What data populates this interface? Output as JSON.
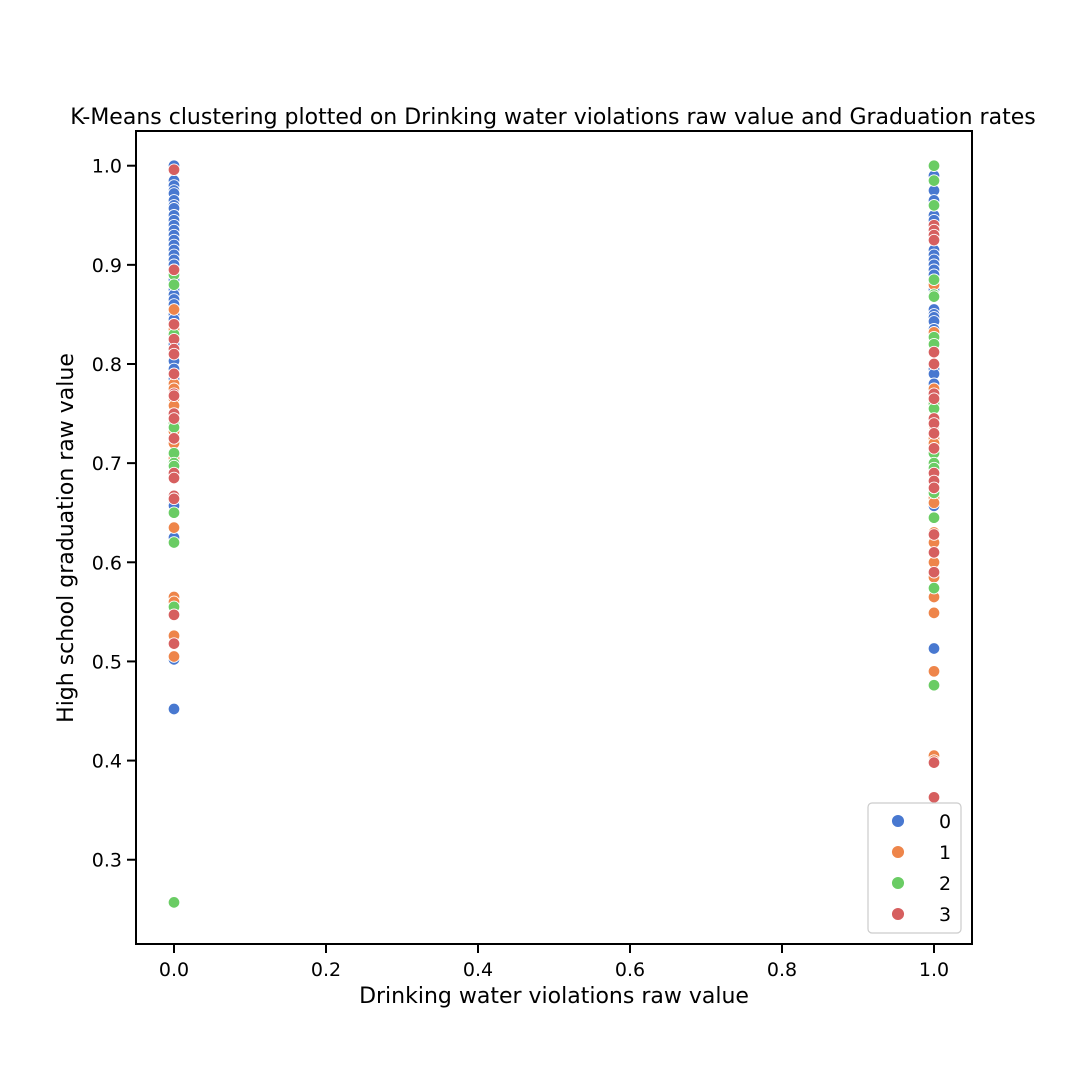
{
  "chart_data": {
    "type": "scatter",
    "title": "K-Means clustering plotted on Drinking water violations raw value and Graduation rates",
    "xlabel": "Drinking water violations raw value",
    "ylabel": "High school graduation raw value",
    "xlim": [
      -0.05,
      1.05
    ],
    "ylim": [
      0.215,
      1.035
    ],
    "xticks": [
      "0.0",
      "0.2",
      "0.4",
      "0.6",
      "0.8",
      "1.0"
    ],
    "yticks": [
      "0.3",
      "0.4",
      "0.5",
      "0.6",
      "0.7",
      "0.8",
      "0.9",
      "1.0"
    ],
    "grid": false,
    "legend_position": "lower-right",
    "series": [
      {
        "name": "0",
        "color": "#4878d0",
        "points": [
          [
            0,
            1.0
          ],
          [
            0,
            0.995
          ],
          [
            0,
            0.985
          ],
          [
            0,
            0.98
          ],
          [
            0,
            0.975
          ],
          [
            0,
            0.972
          ],
          [
            0,
            0.965
          ],
          [
            0,
            0.96
          ],
          [
            0,
            0.957
          ],
          [
            0,
            0.95
          ],
          [
            0,
            0.945
          ],
          [
            0,
            0.94
          ],
          [
            0,
            0.935
          ],
          [
            0,
            0.93
          ],
          [
            0,
            0.925
          ],
          [
            0,
            0.92
          ],
          [
            0,
            0.915
          ],
          [
            0,
            0.91
          ],
          [
            0,
            0.905
          ],
          [
            0,
            0.9
          ],
          [
            0,
            0.895
          ],
          [
            0,
            0.89
          ],
          [
            0,
            0.885
          ],
          [
            0,
            0.875
          ],
          [
            0,
            0.87
          ],
          [
            0,
            0.865
          ],
          [
            0,
            0.86
          ],
          [
            0,
            0.855
          ],
          [
            0,
            0.85
          ],
          [
            0,
            0.845
          ],
          [
            0,
            0.84
          ],
          [
            0,
            0.835
          ],
          [
            0,
            0.83
          ],
          [
            0,
            0.825
          ],
          [
            0,
            0.82
          ],
          [
            0,
            0.81
          ],
          [
            0,
            0.803
          ],
          [
            0,
            0.795
          ],
          [
            0,
            0.79
          ],
          [
            0,
            0.785
          ],
          [
            0,
            0.73
          ],
          [
            0,
            0.727
          ],
          [
            0,
            0.66
          ],
          [
            0,
            0.657
          ],
          [
            0,
            0.625
          ],
          [
            0,
            0.502
          ],
          [
            0,
            0.452
          ],
          [
            1,
            1.0
          ],
          [
            1,
            0.99
          ],
          [
            1,
            0.975
          ],
          [
            1,
            0.965
          ],
          [
            1,
            0.96
          ],
          [
            1,
            0.95
          ],
          [
            1,
            0.945
          ],
          [
            1,
            0.935
          ],
          [
            1,
            0.925
          ],
          [
            1,
            0.915
          ],
          [
            1,
            0.91
          ],
          [
            1,
            0.905
          ],
          [
            1,
            0.9
          ],
          [
            1,
            0.895
          ],
          [
            1,
            0.89
          ],
          [
            1,
            0.885
          ],
          [
            1,
            0.875
          ],
          [
            1,
            0.87
          ],
          [
            1,
            0.855
          ],
          [
            1,
            0.85
          ],
          [
            1,
            0.847
          ],
          [
            1,
            0.843
          ],
          [
            1,
            0.835
          ],
          [
            1,
            0.828
          ],
          [
            1,
            0.8
          ],
          [
            1,
            0.795
          ],
          [
            1,
            0.79
          ],
          [
            1,
            0.78
          ],
          [
            1,
            0.74
          ],
          [
            1,
            0.657
          ],
          [
            1,
            0.513
          ]
        ]
      },
      {
        "name": "1",
        "color": "#ee854a",
        "points": [
          [
            0,
            0.89
          ],
          [
            0,
            0.855
          ],
          [
            0,
            0.835
          ],
          [
            0,
            0.78
          ],
          [
            0,
            0.775
          ],
          [
            0,
            0.765
          ],
          [
            0,
            0.758
          ],
          [
            0,
            0.75
          ],
          [
            0,
            0.74
          ],
          [
            0,
            0.732
          ],
          [
            0,
            0.72
          ],
          [
            0,
            0.705
          ],
          [
            0,
            0.7
          ],
          [
            0,
            0.69
          ],
          [
            0,
            0.635
          ],
          [
            0,
            0.565
          ],
          [
            0,
            0.56
          ],
          [
            0,
            0.526
          ],
          [
            0,
            0.505
          ],
          [
            1,
            0.88
          ],
          [
            1,
            0.868
          ],
          [
            1,
            0.832
          ],
          [
            1,
            0.825
          ],
          [
            1,
            0.8
          ],
          [
            1,
            0.775
          ],
          [
            1,
            0.755
          ],
          [
            1,
            0.738
          ],
          [
            1,
            0.725
          ],
          [
            1,
            0.72
          ],
          [
            1,
            0.712
          ],
          [
            1,
            0.7
          ],
          [
            1,
            0.695
          ],
          [
            1,
            0.69
          ],
          [
            1,
            0.67
          ],
          [
            1,
            0.665
          ],
          [
            1,
            0.66
          ],
          [
            1,
            0.63
          ],
          [
            1,
            0.62
          ],
          [
            1,
            0.6
          ],
          [
            1,
            0.585
          ],
          [
            1,
            0.565
          ],
          [
            1,
            0.549
          ],
          [
            1,
            0.49
          ],
          [
            1,
            0.405
          ],
          [
            1,
            0.4
          ]
        ]
      },
      {
        "name": "2",
        "color": "#6acc64",
        "points": [
          [
            0,
            0.89
          ],
          [
            0,
            0.88
          ],
          [
            0,
            0.83
          ],
          [
            0,
            0.74
          ],
          [
            0,
            0.736
          ],
          [
            0,
            0.71
          ],
          [
            0,
            0.7
          ],
          [
            0,
            0.697
          ],
          [
            0,
            0.65
          ],
          [
            0,
            0.62
          ],
          [
            0,
            0.555
          ],
          [
            0,
            0.257
          ],
          [
            1,
            1.0
          ],
          [
            1,
            0.985
          ],
          [
            1,
            0.96
          ],
          [
            1,
            0.885
          ],
          [
            1,
            0.87
          ],
          [
            1,
            0.868
          ],
          [
            1,
            0.827
          ],
          [
            1,
            0.82
          ],
          [
            1,
            0.76
          ],
          [
            1,
            0.755
          ],
          [
            1,
            0.71
          ],
          [
            1,
            0.7
          ],
          [
            1,
            0.695
          ],
          [
            1,
            0.688
          ],
          [
            1,
            0.67
          ],
          [
            1,
            0.645
          ],
          [
            1,
            0.574
          ],
          [
            1,
            0.476
          ]
        ]
      },
      {
        "name": "3",
        "color": "#d65f5f",
        "points": [
          [
            0,
            0.996
          ],
          [
            0,
            0.895
          ],
          [
            0,
            0.84
          ],
          [
            0,
            0.825
          ],
          [
            0,
            0.815
          ],
          [
            0,
            0.81
          ],
          [
            0,
            0.79
          ],
          [
            0,
            0.77
          ],
          [
            0,
            0.768
          ],
          [
            0,
            0.75
          ],
          [
            0,
            0.745
          ],
          [
            0,
            0.725
          ],
          [
            0,
            0.69
          ],
          [
            0,
            0.685
          ],
          [
            0,
            0.667
          ],
          [
            0,
            0.664
          ],
          [
            0,
            0.547
          ],
          [
            0,
            0.518
          ],
          [
            1,
            0.94
          ],
          [
            1,
            0.935
          ],
          [
            1,
            0.93
          ],
          [
            1,
            0.925
          ],
          [
            1,
            0.812
          ],
          [
            1,
            0.8
          ],
          [
            1,
            0.77
          ],
          [
            1,
            0.765
          ],
          [
            1,
            0.745
          ],
          [
            1,
            0.74
          ],
          [
            1,
            0.73
          ],
          [
            1,
            0.715
          ],
          [
            1,
            0.69
          ],
          [
            1,
            0.682
          ],
          [
            1,
            0.675
          ],
          [
            1,
            0.628
          ],
          [
            1,
            0.61
          ],
          [
            1,
            0.59
          ],
          [
            1,
            0.398
          ],
          [
            1,
            0.363
          ]
        ]
      }
    ]
  }
}
